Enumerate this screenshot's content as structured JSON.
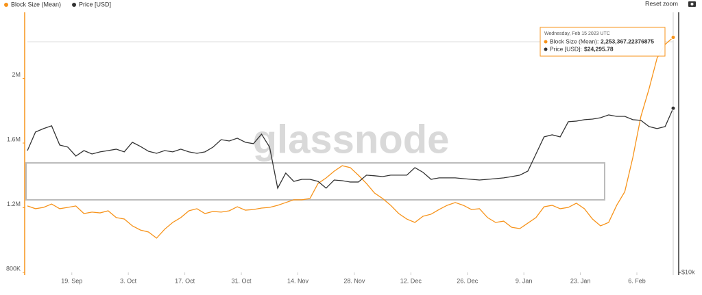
{
  "chart_data": {
    "type": "line",
    "legend": "top-left",
    "x": [
      "2022-09-08",
      "2022-09-10",
      "2022-09-12",
      "2022-09-14",
      "2022-09-16",
      "2022-09-18",
      "2022-09-20",
      "2022-09-22",
      "2022-09-24",
      "2022-09-26",
      "2022-09-28",
      "2022-09-30",
      "2022-10-02",
      "2022-10-04",
      "2022-10-06",
      "2022-10-08",
      "2022-10-10",
      "2022-10-12",
      "2022-10-14",
      "2022-10-16",
      "2022-10-18",
      "2022-10-20",
      "2022-10-22",
      "2022-10-24",
      "2022-10-26",
      "2022-10-28",
      "2022-10-30",
      "2022-11-01",
      "2022-11-03",
      "2022-11-05",
      "2022-11-07",
      "2022-11-09",
      "2022-11-11",
      "2022-11-13",
      "2022-11-15",
      "2022-11-17",
      "2022-11-19",
      "2022-11-21",
      "2022-11-23",
      "2022-11-25",
      "2022-11-27",
      "2022-11-29",
      "2022-12-01",
      "2022-12-03",
      "2022-12-05",
      "2022-12-07",
      "2022-12-09",
      "2022-12-11",
      "2022-12-13",
      "2022-12-15",
      "2022-12-17",
      "2022-12-19",
      "2022-12-21",
      "2022-12-23",
      "2022-12-25",
      "2022-12-27",
      "2022-12-29",
      "2022-12-31",
      "2023-01-02",
      "2023-01-04",
      "2023-01-06",
      "2023-01-08",
      "2023-01-10",
      "2023-01-12",
      "2023-01-14",
      "2023-01-16",
      "2023-01-18",
      "2023-01-20",
      "2023-01-22",
      "2023-01-24",
      "2023-01-26",
      "2023-01-28",
      "2023-01-30",
      "2023-02-01",
      "2023-02-03",
      "2023-02-05",
      "2023-02-07",
      "2023-02-09",
      "2023-02-11",
      "2023-02-13",
      "2023-02-15"
    ],
    "xlim": [
      "2022-09-08",
      "2023-02-15"
    ],
    "xticks": [
      {
        "value": "2022-09-19",
        "label": "19. Sep"
      },
      {
        "value": "2022-10-03",
        "label": "3. Oct"
      },
      {
        "value": "2022-10-17",
        "label": "17. Oct"
      },
      {
        "value": "2022-10-31",
        "label": "31. Oct"
      },
      {
        "value": "2022-11-14",
        "label": "14. Nov"
      },
      {
        "value": "2022-11-28",
        "label": "28. Nov"
      },
      {
        "value": "2022-12-12",
        "label": "12. Dec"
      },
      {
        "value": "2022-12-26",
        "label": "26. Dec"
      },
      {
        "value": "2023-01-09",
        "label": "9. Jan"
      },
      {
        "value": "2023-01-23",
        "label": "23. Jan"
      },
      {
        "value": "2023-02-06",
        "label": "6. Feb"
      }
    ],
    "ylim": [
      800000,
      2400000
    ],
    "yticks": [
      {
        "value": 800000,
        "label": "800K"
      },
      {
        "value": 1200000,
        "label": "1.2M"
      },
      {
        "value": 1600000,
        "label": "1.6M"
      },
      {
        "value": 2000000,
        "label": "2M"
      }
    ],
    "y2lim": [
      10000,
      40500
    ],
    "y2ticks": [
      {
        "value": 10000,
        "label": "$10k"
      }
    ],
    "y2_log": true,
    "series": [
      {
        "name": "Block Size (Mean)",
        "color": "#f7931a",
        "values": [
          1211000,
          1194000,
          1202000,
          1223000,
          1194000,
          1202000,
          1211000,
          1164000,
          1173000,
          1168000,
          1181000,
          1139000,
          1130000,
          1088000,
          1062000,
          1050000,
          1012000,
          1067000,
          1109000,
          1139000,
          1181000,
          1194000,
          1164000,
          1177000,
          1173000,
          1181000,
          1206000,
          1185000,
          1189000,
          1198000,
          1202000,
          1215000,
          1232000,
          1249000,
          1249000,
          1257000,
          1350000,
          1384000,
          1426000,
          1460000,
          1448000,
          1401000,
          1350000,
          1291000,
          1257000,
          1215000,
          1164000,
          1130000,
          1109000,
          1147000,
          1160000,
          1189000,
          1215000,
          1232000,
          1215000,
          1189000,
          1194000,
          1139000,
          1109000,
          1117000,
          1079000,
          1071000,
          1105000,
          1139000,
          1206000,
          1215000,
          1194000,
          1202000,
          1228000,
          1194000,
          1130000,
          1088000,
          1109000,
          1215000,
          1299000,
          1511000,
          1765000,
          1934000,
          2125000,
          2210000,
          2253367.22376875
        ]
      },
      {
        "name": "Price [USD]",
        "color": "#333333",
        "axis": "y2",
        "values": [
          19320,
          21360,
          21760,
          22090,
          19910,
          19690,
          18760,
          19320,
          18970,
          19190,
          19320,
          19470,
          19190,
          20210,
          19760,
          19250,
          19040,
          19320,
          19190,
          19470,
          19190,
          19040,
          19190,
          19690,
          20500,
          20350,
          20660,
          20210,
          20060,
          21120,
          19690,
          15770,
          17110,
          16360,
          16540,
          16540,
          16360,
          15770,
          16480,
          16420,
          16300,
          16300,
          16920,
          16860,
          16790,
          16920,
          16920,
          16920,
          17620,
          17180,
          16540,
          16670,
          16670,
          16670,
          16600,
          16540,
          16480,
          16540,
          16600,
          16670,
          16790,
          16920,
          17300,
          18970,
          20810,
          21040,
          20810,
          22580,
          22660,
          22830,
          22910,
          23080,
          23430,
          23250,
          23250,
          22830,
          22750,
          22000,
          21760,
          22000,
          24295.78
        ]
      }
    ],
    "tooltip": {
      "title": "Wednesday, Feb 15 2023 UTC",
      "items": [
        {
          "label": "Block Size (Mean):",
          "value_label": "2,253,367.22376875"
        },
        {
          "label": "Price [USD]:",
          "value_label": "$24,295.78"
        }
      ]
    },
    "reset_button": "Reset zoom",
    "watermark": "glassnode"
  }
}
